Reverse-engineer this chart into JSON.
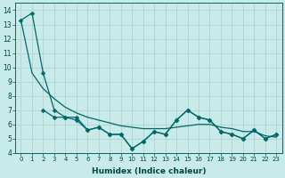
{
  "xlabel": "Humidex (Indice chaleur)",
  "bg_color": "#c8eae8",
  "line_color": "#006868",
  "grid_color": "#aacfcc",
  "xlim": [
    -0.5,
    23.5
  ],
  "ylim": [
    4,
    14.5
  ],
  "yticks": [
    4,
    5,
    6,
    7,
    8,
    9,
    10,
    11,
    12,
    13,
    14
  ],
  "xticks": [
    0,
    1,
    2,
    3,
    4,
    5,
    6,
    7,
    8,
    9,
    10,
    11,
    12,
    13,
    14,
    15,
    16,
    17,
    18,
    19,
    20,
    21,
    22,
    23
  ],
  "line1_x": [
    0,
    1,
    2,
    3,
    4,
    5,
    6,
    7,
    8,
    9,
    10,
    11,
    12,
    13,
    14,
    15,
    16,
    17,
    18,
    19,
    20,
    21,
    22,
    23
  ],
  "line1_y": [
    13.3,
    13.8,
    9.6,
    7.0,
    6.5,
    6.5,
    5.6,
    5.8,
    5.3,
    5.3,
    4.3,
    4.8,
    5.5,
    5.3,
    6.3,
    7.0,
    6.5,
    6.3,
    5.5,
    5.3,
    5.0,
    5.6,
    5.0,
    5.3
  ],
  "line2_x": [
    0,
    1,
    2,
    3,
    4,
    5,
    6,
    7,
    8,
    9,
    10,
    11,
    12,
    13,
    14,
    15,
    16,
    17,
    18,
    19,
    20,
    21,
    22,
    23
  ],
  "line2_y": [
    13.3,
    9.6,
    8.5,
    7.8,
    7.2,
    6.8,
    6.5,
    6.3,
    6.1,
    5.9,
    5.8,
    5.7,
    5.7,
    5.7,
    5.8,
    5.9,
    6.0,
    6.0,
    5.8,
    5.7,
    5.5,
    5.5,
    5.2,
    5.1
  ],
  "line3_x": [
    2,
    3,
    4,
    5,
    6,
    7,
    8,
    9,
    10,
    11,
    12,
    13,
    14,
    15,
    16,
    17,
    18,
    19,
    20,
    21,
    22,
    23
  ],
  "line3_y": [
    7.0,
    6.5,
    6.5,
    6.3,
    5.6,
    5.8,
    5.3,
    5.3,
    4.3,
    4.8,
    5.5,
    5.3,
    6.3,
    7.0,
    6.5,
    6.3,
    5.5,
    5.3,
    5.0,
    5.6,
    5.0,
    5.3
  ]
}
